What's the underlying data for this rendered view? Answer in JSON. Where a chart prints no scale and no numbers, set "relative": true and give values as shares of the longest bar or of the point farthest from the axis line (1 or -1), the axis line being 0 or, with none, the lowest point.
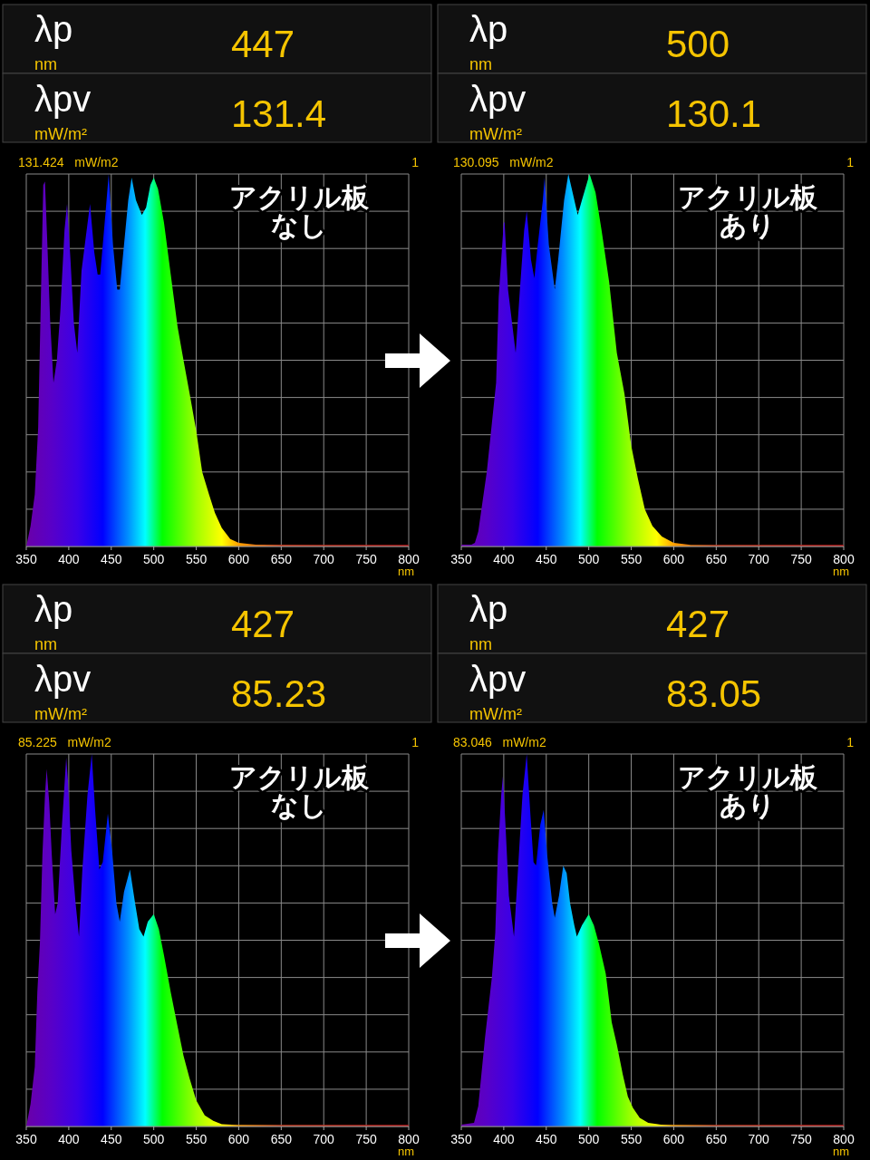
{
  "chart_data": [
    {
      "type": "area",
      "relative": true,
      "title": "アクリル板",
      "subtitle": "なし",
      "xlabel": "nm",
      "xlim": [
        350,
        800
      ],
      "xticks": [
        350,
        400,
        450,
        500,
        550,
        600,
        650,
        700,
        750,
        800
      ],
      "grid": true,
      "annotations": [
        "λp",
        "nm",
        "447",
        "λpv",
        "mW/m²",
        "131.4",
        "131.424   mW/m2",
        "1"
      ],
      "x": [
        350,
        355,
        360,
        364,
        367,
        370,
        372,
        375,
        378,
        382,
        386,
        390,
        395,
        398,
        402,
        406,
        410,
        415,
        420,
        425,
        430,
        434,
        437,
        443,
        447,
        452,
        457,
        460,
        465,
        470,
        474,
        479,
        486,
        491,
        496,
        500,
        505,
        512,
        520,
        528,
        535,
        543,
        550,
        557,
        565,
        572,
        580,
        590,
        600,
        620,
        700,
        800
      ],
      "values": [
        0,
        0.055,
        0.14,
        0.32,
        0.65,
        0.97,
        0.98,
        0.8,
        0.61,
        0.44,
        0.5,
        0.63,
        0.85,
        0.92,
        0.77,
        0.6,
        0.52,
        0.74,
        0.83,
        0.92,
        0.79,
        0.73,
        0.73,
        0.89,
        1,
        0.81,
        0.69,
        0.69,
        0.81,
        0.93,
        0.99,
        0.93,
        0.89,
        0.91,
        0.97,
        0.99,
        0.96,
        0.87,
        0.73,
        0.59,
        0.5,
        0.4,
        0.31,
        0.2,
        0.14,
        0.09,
        0.05,
        0.02,
        0.01,
        0.005,
        0.004,
        0.004
      ]
    },
    {
      "type": "area",
      "relative": true,
      "title": "アクリル板",
      "subtitle": "あり",
      "xlabel": "nm",
      "xlim": [
        350,
        800
      ],
      "xticks": [
        350,
        400,
        450,
        500,
        550,
        600,
        650,
        700,
        750,
        800
      ],
      "grid": true,
      "annotations": [
        "λp",
        "nm",
        "500",
        "λpv",
        "mW/m²",
        "130.1",
        "130.095   mW/m2",
        "1"
      ],
      "x": [
        350,
        362,
        366,
        370,
        380,
        391,
        394,
        400,
        401,
        405,
        414,
        419,
        424,
        427,
        432,
        436,
        440,
        446,
        448,
        453,
        460,
        464,
        471,
        476,
        481,
        487,
        492,
        501,
        508,
        515,
        524,
        533,
        542,
        550,
        558,
        566,
        575,
        586,
        600,
        620,
        800
      ],
      "values": [
        0.005,
        0.005,
        0.01,
        0.04,
        0.2,
        0.44,
        0.67,
        0.87,
        0.87,
        0.69,
        0.52,
        0.69,
        0.85,
        0.9,
        0.77,
        0.72,
        0.81,
        0.93,
        0.99,
        0.81,
        0.69,
        0.77,
        0.93,
        1,
        0.95,
        0.89,
        0.93,
        1,
        0.95,
        0.85,
        0.71,
        0.52,
        0.41,
        0.27,
        0.18,
        0.1,
        0.055,
        0.027,
        0.01,
        0.004,
        0.004
      ]
    },
    {
      "type": "area",
      "relative": true,
      "title": "アクリル板",
      "subtitle": "なし",
      "xlabel": "nm",
      "xlim": [
        350,
        800
      ],
      "xticks": [
        350,
        400,
        450,
        500,
        550,
        600,
        650,
        700,
        750,
        800
      ],
      "grid": true,
      "annotations": [
        "λp",
        "nm",
        "427",
        "λpv",
        "mW/m²",
        "85.23",
        "85.225   mW/m2",
        "1"
      ],
      "x": [
        350,
        355,
        360,
        363,
        366,
        369,
        372,
        374,
        377,
        380,
        384,
        387,
        392,
        397,
        399,
        403,
        408,
        412,
        416,
        422,
        427,
        431,
        436,
        440,
        446,
        451,
        456,
        460,
        465,
        472,
        478,
        483,
        488,
        493,
        500,
        506,
        512,
        520,
        527,
        535,
        542,
        550,
        560,
        570,
        580,
        600,
        800
      ],
      "values": [
        0,
        0.06,
        0.16,
        0.36,
        0.49,
        0.73,
        0.89,
        0.96,
        0.87,
        0.73,
        0.57,
        0.6,
        0.81,
        0.99,
        0.93,
        0.74,
        0.6,
        0.51,
        0.69,
        0.89,
        1,
        0.85,
        0.69,
        0.71,
        0.84,
        0.74,
        0.6,
        0.55,
        0.63,
        0.69,
        0.6,
        0.53,
        0.51,
        0.55,
        0.57,
        0.53,
        0.46,
        0.36,
        0.28,
        0.19,
        0.13,
        0.07,
        0.03,
        0.015,
        0.006,
        0.004,
        0.004
      ]
    },
    {
      "type": "area",
      "relative": true,
      "title": "アクリル板",
      "subtitle": "あり",
      "xlabel": "nm",
      "xlim": [
        350,
        800
      ],
      "xticks": [
        350,
        400,
        450,
        500,
        550,
        600,
        650,
        700,
        750,
        800
      ],
      "grid": true,
      "annotations": [
        "λp",
        "nm",
        "427",
        "λpv",
        "mW/m²",
        "83.05",
        "83.046   mW/m2",
        "1"
      ],
      "x": [
        350,
        365,
        370,
        378,
        386,
        390,
        393,
        397,
        399,
        402,
        406,
        412,
        417,
        422,
        427,
        431,
        435,
        438,
        443,
        447,
        451,
        457,
        460,
        465,
        470,
        474,
        478,
        483,
        486,
        492,
        500,
        506,
        512,
        520,
        527,
        533,
        540,
        546,
        552,
        560,
        570,
        585,
        600,
        800
      ],
      "values": [
        0.005,
        0.01,
        0.055,
        0.24,
        0.4,
        0.52,
        0.73,
        0.89,
        0.94,
        0.81,
        0.62,
        0.51,
        0.7,
        0.89,
        1,
        0.85,
        0.71,
        0.7,
        0.81,
        0.85,
        0.73,
        0.6,
        0.56,
        0.62,
        0.7,
        0.68,
        0.6,
        0.54,
        0.51,
        0.54,
        0.57,
        0.54,
        0.49,
        0.41,
        0.28,
        0.22,
        0.14,
        0.08,
        0.05,
        0.023,
        0.01,
        0.005,
        0.004,
        0.004
      ]
    }
  ]
}
